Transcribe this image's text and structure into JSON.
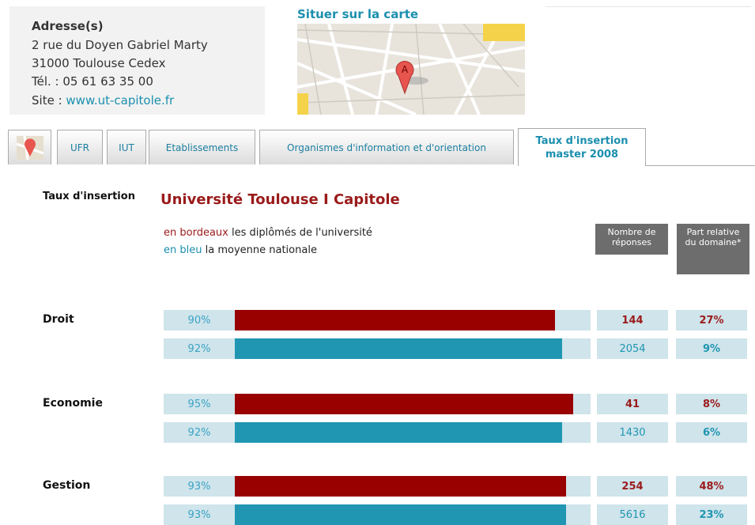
{
  "address": {
    "title": "Adresse(s)",
    "lines": [
      "2 rue du Doyen Gabriel Marty",
      "31000 Toulouse Cedex",
      "Tél. : 05 61 63 35 00"
    ],
    "site_label": "Site :",
    "site_link": "www.ut-capitole.fr"
  },
  "map": {
    "title": "Situer sur la carte"
  },
  "tabs": [
    "UFR",
    "IUT",
    "Etablissements",
    "Organismes d'information et d'orientation",
    "Taux d'insertion master 2008"
  ],
  "section": {
    "label": "Taux d'insertion",
    "title": "Université Toulouse I Capitole",
    "legend": [
      {
        "key": "en bordeaux",
        "text": "les diplômés de l'université"
      },
      {
        "key": "en bleu",
        "text": "la moyenne nationale"
      }
    ],
    "columns": [
      "Nombre de réponses",
      "Part relative du domaine*"
    ]
  },
  "domains": [
    {
      "name": "Droit",
      "rows": [
        {
          "rate": 90,
          "rate_label": "90%",
          "responses": "144",
          "share": "27%"
        },
        {
          "rate": 92,
          "rate_label": "92%",
          "responses": "2054",
          "share": "9%"
        }
      ]
    },
    {
      "name": "Economie",
      "rows": [
        {
          "rate": 95,
          "rate_label": "95%",
          "responses": "41",
          "share": "8%"
        },
        {
          "rate": 92,
          "rate_label": "92%",
          "responses": "1430",
          "share": "6%"
        }
      ]
    },
    {
      "name": "Gestion",
      "rows": [
        {
          "rate": 93,
          "rate_label": "93%",
          "responses": "254",
          "share": "48%"
        },
        {
          "rate": 93,
          "rate_label": "93%",
          "responses": "5616",
          "share": "23%"
        }
      ]
    }
  ]
}
